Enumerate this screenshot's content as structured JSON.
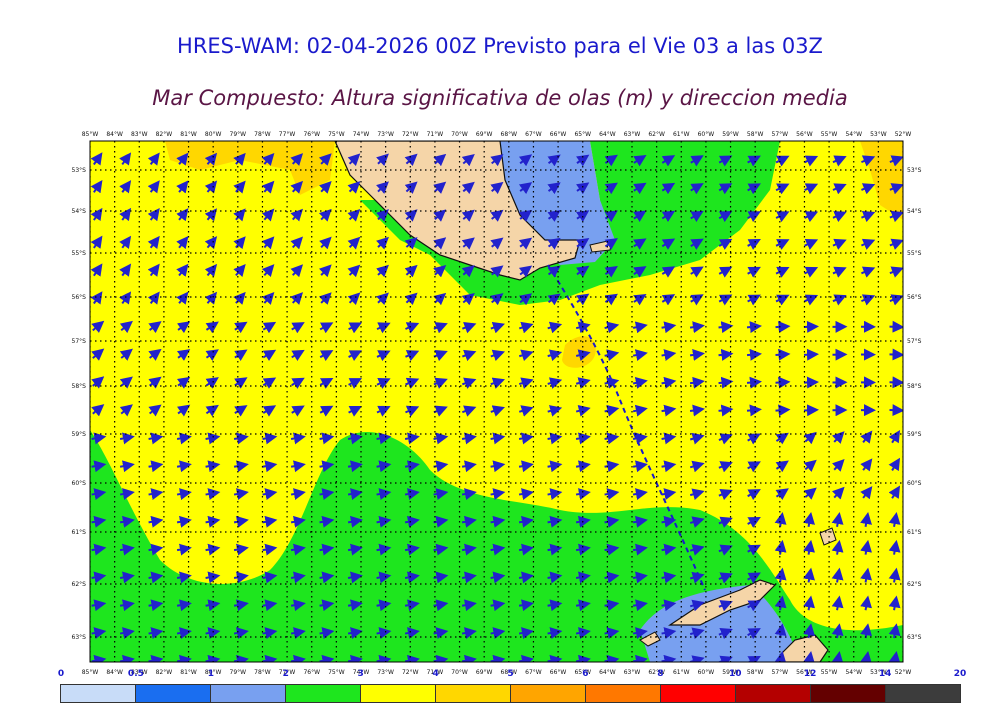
{
  "title": "HRES-WAM: 02-04-2026 00Z Previsto para el Vie 03 a las 03Z",
  "subtitle": "Mar Compuesto: Altura significativa de olas (m) y direccion media",
  "lon_labels": [
    "85°W",
    "84°W",
    "83°W",
    "82°W",
    "81°W",
    "80°W",
    "79°W",
    "78°W",
    "77°W",
    "76°W",
    "75°W",
    "74°W",
    "73°W",
    "72°W",
    "71°W",
    "70°W",
    "69°W",
    "68°W",
    "67°W",
    "66°W",
    "65°W",
    "64°W",
    "63°W",
    "62°W",
    "61°W",
    "60°W",
    "59°W",
    "58°W",
    "57°W",
    "56°W",
    "55°W",
    "54°W",
    "53°W",
    "52°W"
  ],
  "lat_labels": [
    "53°S",
    "54°S",
    "55°S",
    "56°S",
    "57°S",
    "58°S",
    "59°S",
    "60°S",
    "61°S",
    "62°S",
    "63°S"
  ],
  "legend": {
    "tick_labels": [
      "0",
      "0.5",
      "1",
      "2",
      "3",
      "4",
      "5",
      "6",
      "8",
      "10",
      "12",
      "14",
      "20"
    ],
    "colors": [
      "#c8dcf8",
      "#1a6ef0",
      "#78a0f0",
      "#1ee61e",
      "#ffff00",
      "#ffd700",
      "#ffa500",
      "#ff7800",
      "#ff0000",
      "#b40000",
      "#640000",
      "#3c3c3c"
    ]
  },
  "colors": {
    "land": "#f5d5a8",
    "sea_green": "#1ee61e",
    "sea_yellow": "#ffff00",
    "sea_gold": "#ffd700",
    "sea_blue": "#78a0f0",
    "arrow": "#2222cc"
  },
  "map_extent": {
    "lon_min": -85,
    "lon_max": -52,
    "lat_min": -63.3,
    "lat_max": -52.7
  }
}
